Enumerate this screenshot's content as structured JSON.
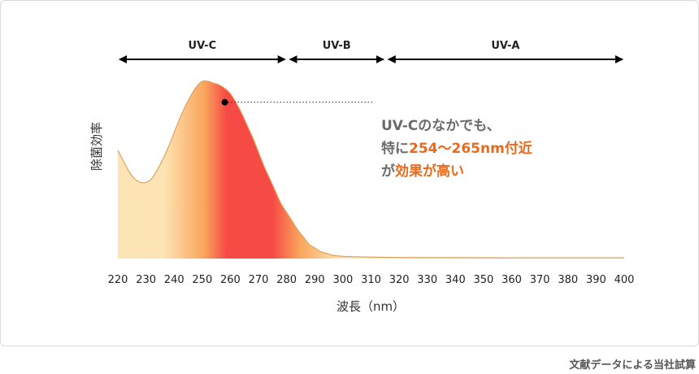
{
  "chart_data": {
    "type": "area",
    "xlabel": "波長（nm）",
    "ylabel": "除菌効率",
    "xlim": [
      220,
      400
    ],
    "x_ticks": [
      220,
      230,
      240,
      250,
      260,
      270,
      280,
      290,
      300,
      310,
      320,
      330,
      340,
      350,
      360,
      370,
      380,
      390,
      400
    ],
    "ylim": [
      0,
      1
    ],
    "y_ticks": [],
    "grid": false,
    "bands": [
      {
        "label": "UV-C",
        "range": [
          220,
          280
        ]
      },
      {
        "label": "UV-B",
        "range": [
          280,
          315
        ]
      },
      {
        "label": "UV-A",
        "range": [
          315,
          400
        ]
      }
    ],
    "series": [
      {
        "x": [
          220,
          222,
          224,
          226,
          228,
          230,
          232,
          234,
          236,
          238,
          240,
          242,
          244,
          246,
          248,
          250,
          252,
          254,
          256,
          258,
          260,
          262,
          264,
          266,
          268,
          270,
          272,
          274,
          276,
          278,
          280,
          282,
          284,
          286,
          288,
          290,
          292,
          294,
          296,
          298,
          300,
          305,
          310,
          320,
          340,
          360,
          380,
          400
        ],
        "values": [
          0.61,
          0.55,
          0.49,
          0.45,
          0.43,
          0.43,
          0.45,
          0.5,
          0.56,
          0.63,
          0.71,
          0.79,
          0.86,
          0.92,
          0.97,
          1.0,
          1.0,
          0.99,
          0.98,
          0.96,
          0.93,
          0.88,
          0.82,
          0.75,
          0.68,
          0.6,
          0.52,
          0.45,
          0.38,
          0.31,
          0.26,
          0.21,
          0.16,
          0.12,
          0.08,
          0.06,
          0.04,
          0.03,
          0.02,
          0.015,
          0.012,
          0.01,
          0.008,
          0.006,
          0.005,
          0.004,
          0.004,
          0.004
        ]
      }
    ],
    "marker": {
      "x": 258,
      "y": 0.96
    },
    "annotation": {
      "line1": "UV-Cのなかでも、",
      "line2_pre": "特に",
      "line2_highlight": "254〜265nm付近",
      "line3_pre": "が",
      "line3_highlight": "効果が高い"
    }
  },
  "colors": {
    "curve": "#e0a05a",
    "fill_light": "#fde4b4",
    "fill_mid": "#f9a65c",
    "fill_peak": "#f64a45",
    "annotation_gray": "#6b6b6b",
    "annotation_orange": "#e86a1c",
    "arrow": "#000000"
  },
  "footer": "文献データによる当社試算"
}
